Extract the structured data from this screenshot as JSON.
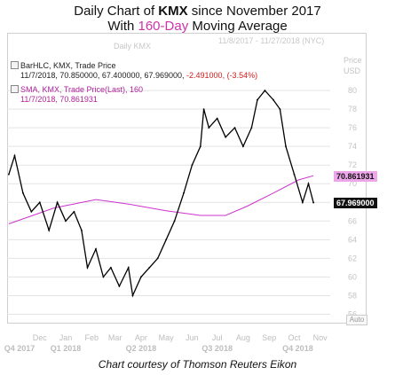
{
  "title": {
    "line1_pre": "Daily Chart of ",
    "line1_ticker": "KMX",
    "line1_post": " since November 2017",
    "line2_pre": "With ",
    "line2_hl": "160-Day",
    "line2_post": " Moving Average"
  },
  "watermark": {
    "range": "11/8/2017 - 11/27/2018 (NYC)",
    "ticker": "Daily KMX",
    "price_header": "Price",
    "currency_header": "USD"
  },
  "legend": {
    "bar_line": "BarHLC, KMX, Trade Price",
    "bar_values": "11/7/2018, 70.850000, 67.400000, 67.969000,",
    "bar_change": "-2.491000, (-3.54%)",
    "sma_line": "SMA, KMX, Trade Price(Last),  160",
    "sma_values": "11/7/2018, 70.861931"
  },
  "badges": {
    "sma_last": "70.861931",
    "price_last": "67.969000"
  },
  "auto_label": "Auto",
  "caption": "Chart courtesy of Thomson Reuters Eikon",
  "colors": {
    "price": "#000000",
    "sma": "#cc33cc",
    "sma_badge": "#e79be3",
    "grid": "#e3e3e3"
  },
  "chart_data": {
    "type": "line",
    "y_ticks": [
      "56",
      "58",
      "60",
      "62",
      "64",
      "66",
      "68",
      "70",
      "72",
      "74",
      "76",
      "78",
      "80"
    ],
    "ylim": [
      55,
      84
    ],
    "month_labels": [
      "Dec",
      "Jan",
      "Feb",
      "Mar",
      "Apr",
      "May",
      "Jun",
      "Jul",
      "Aug",
      "Sep",
      "Oct",
      "Nov"
    ],
    "quarter_labels": [
      "Q4 2017",
      "Q1 2018",
      "Q2 2018",
      "Q3 2018",
      "Q4 2018"
    ],
    "series": [
      {
        "role": "price",
        "points": [
          [
            "2017-11-08",
            71
          ],
          [
            "2017-11-15",
            73
          ],
          [
            "2017-11-25",
            69
          ],
          [
            "2017-12-05",
            67
          ],
          [
            "2017-12-15",
            68
          ],
          [
            "2017-12-26",
            65
          ],
          [
            "2018-01-05",
            68
          ],
          [
            "2018-01-15",
            66
          ],
          [
            "2018-01-25",
            67
          ],
          [
            "2018-02-03",
            65
          ],
          [
            "2018-02-10",
            61
          ],
          [
            "2018-02-20",
            63
          ],
          [
            "2018-03-01",
            60
          ],
          [
            "2018-03-10",
            61
          ],
          [
            "2018-03-20",
            59
          ],
          [
            "2018-03-31",
            61
          ],
          [
            "2018-04-05",
            58
          ],
          [
            "2018-04-15",
            60
          ],
          [
            "2018-04-25",
            61
          ],
          [
            "2018-05-05",
            62
          ],
          [
            "2018-05-15",
            64
          ],
          [
            "2018-05-25",
            66
          ],
          [
            "2018-06-05",
            69
          ],
          [
            "2018-06-15",
            72
          ],
          [
            "2018-06-25",
            74
          ],
          [
            "2018-06-29",
            78
          ],
          [
            "2018-07-05",
            76
          ],
          [
            "2018-07-15",
            77
          ],
          [
            "2018-07-25",
            75
          ],
          [
            "2018-08-05",
            76
          ],
          [
            "2018-08-15",
            74
          ],
          [
            "2018-08-25",
            76
          ],
          [
            "2018-09-01",
            79
          ],
          [
            "2018-09-10",
            80
          ],
          [
            "2018-09-20",
            79
          ],
          [
            "2018-09-28",
            78
          ],
          [
            "2018-10-05",
            74
          ],
          [
            "2018-10-15",
            71
          ],
          [
            "2018-10-25",
            68
          ],
          [
            "2018-11-01",
            70
          ],
          [
            "2018-11-07",
            67.969
          ]
        ]
      },
      {
        "role": "sma",
        "points": [
          [
            "2017-11-08",
            65.7
          ],
          [
            "2018-01-01",
            67.4
          ],
          [
            "2018-02-20",
            68.3
          ],
          [
            "2018-04-01",
            67.8
          ],
          [
            "2018-05-15",
            67.1
          ],
          [
            "2018-06-25",
            66.6
          ],
          [
            "2018-07-25",
            66.6
          ],
          [
            "2018-08-20",
            67.6
          ],
          [
            "2018-09-20",
            69.0
          ],
          [
            "2018-10-20",
            70.4
          ],
          [
            "2018-11-07",
            70.86
          ]
        ]
      }
    ]
  }
}
